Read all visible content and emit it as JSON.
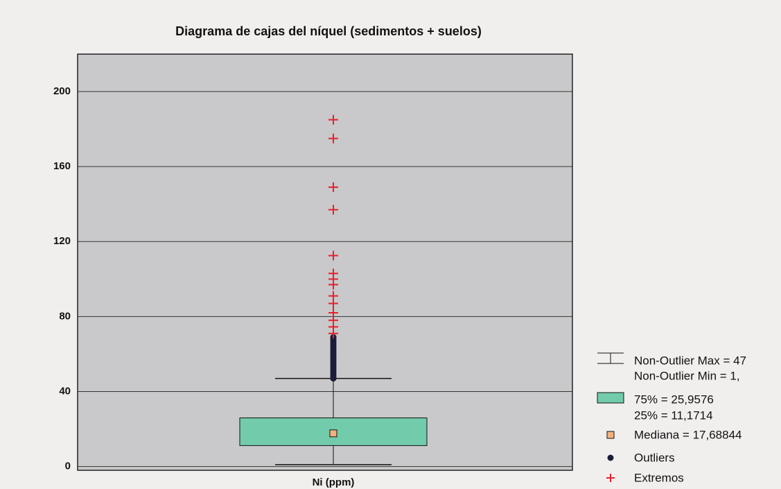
{
  "chart_data": {
    "type": "box",
    "title": "Diagrama de cajas del níquel (sedimentos + suelos)",
    "categories": [
      "Ni (ppm)"
    ],
    "ylim": [
      -2,
      220
    ],
    "yticks": [
      0,
      40,
      80,
      120,
      160,
      200
    ],
    "grid": true,
    "whisker_low": 1,
    "q1": 11.1714,
    "median": 17.68844,
    "q3": 25.9576,
    "whisker_high": 47,
    "outliers": [
      47,
      48,
      49,
      50,
      51,
      52,
      53,
      54,
      55,
      56,
      57,
      58,
      59,
      60,
      61,
      62,
      63,
      64,
      65,
      66,
      67,
      68,
      69
    ],
    "extremes": [
      71,
      74.5,
      78,
      82,
      87,
      91,
      97,
      100,
      103,
      112.5,
      137,
      149,
      175,
      185
    ],
    "box_color": "#72cbaa",
    "median_color": "#f2b27e",
    "outlier_color": "#1c1c3a",
    "extreme_color": "#e8202a",
    "legend": {
      "whisker": [
        "Non-Outlier Max = 47",
        "Non-Outlier Min = 1,"
      ],
      "box": [
        "75% = 25,9576",
        "25% = 11,1714"
      ],
      "median": "Mediana = 17,68844",
      "outliers": "Outliers",
      "extremes": "Extremos"
    }
  }
}
